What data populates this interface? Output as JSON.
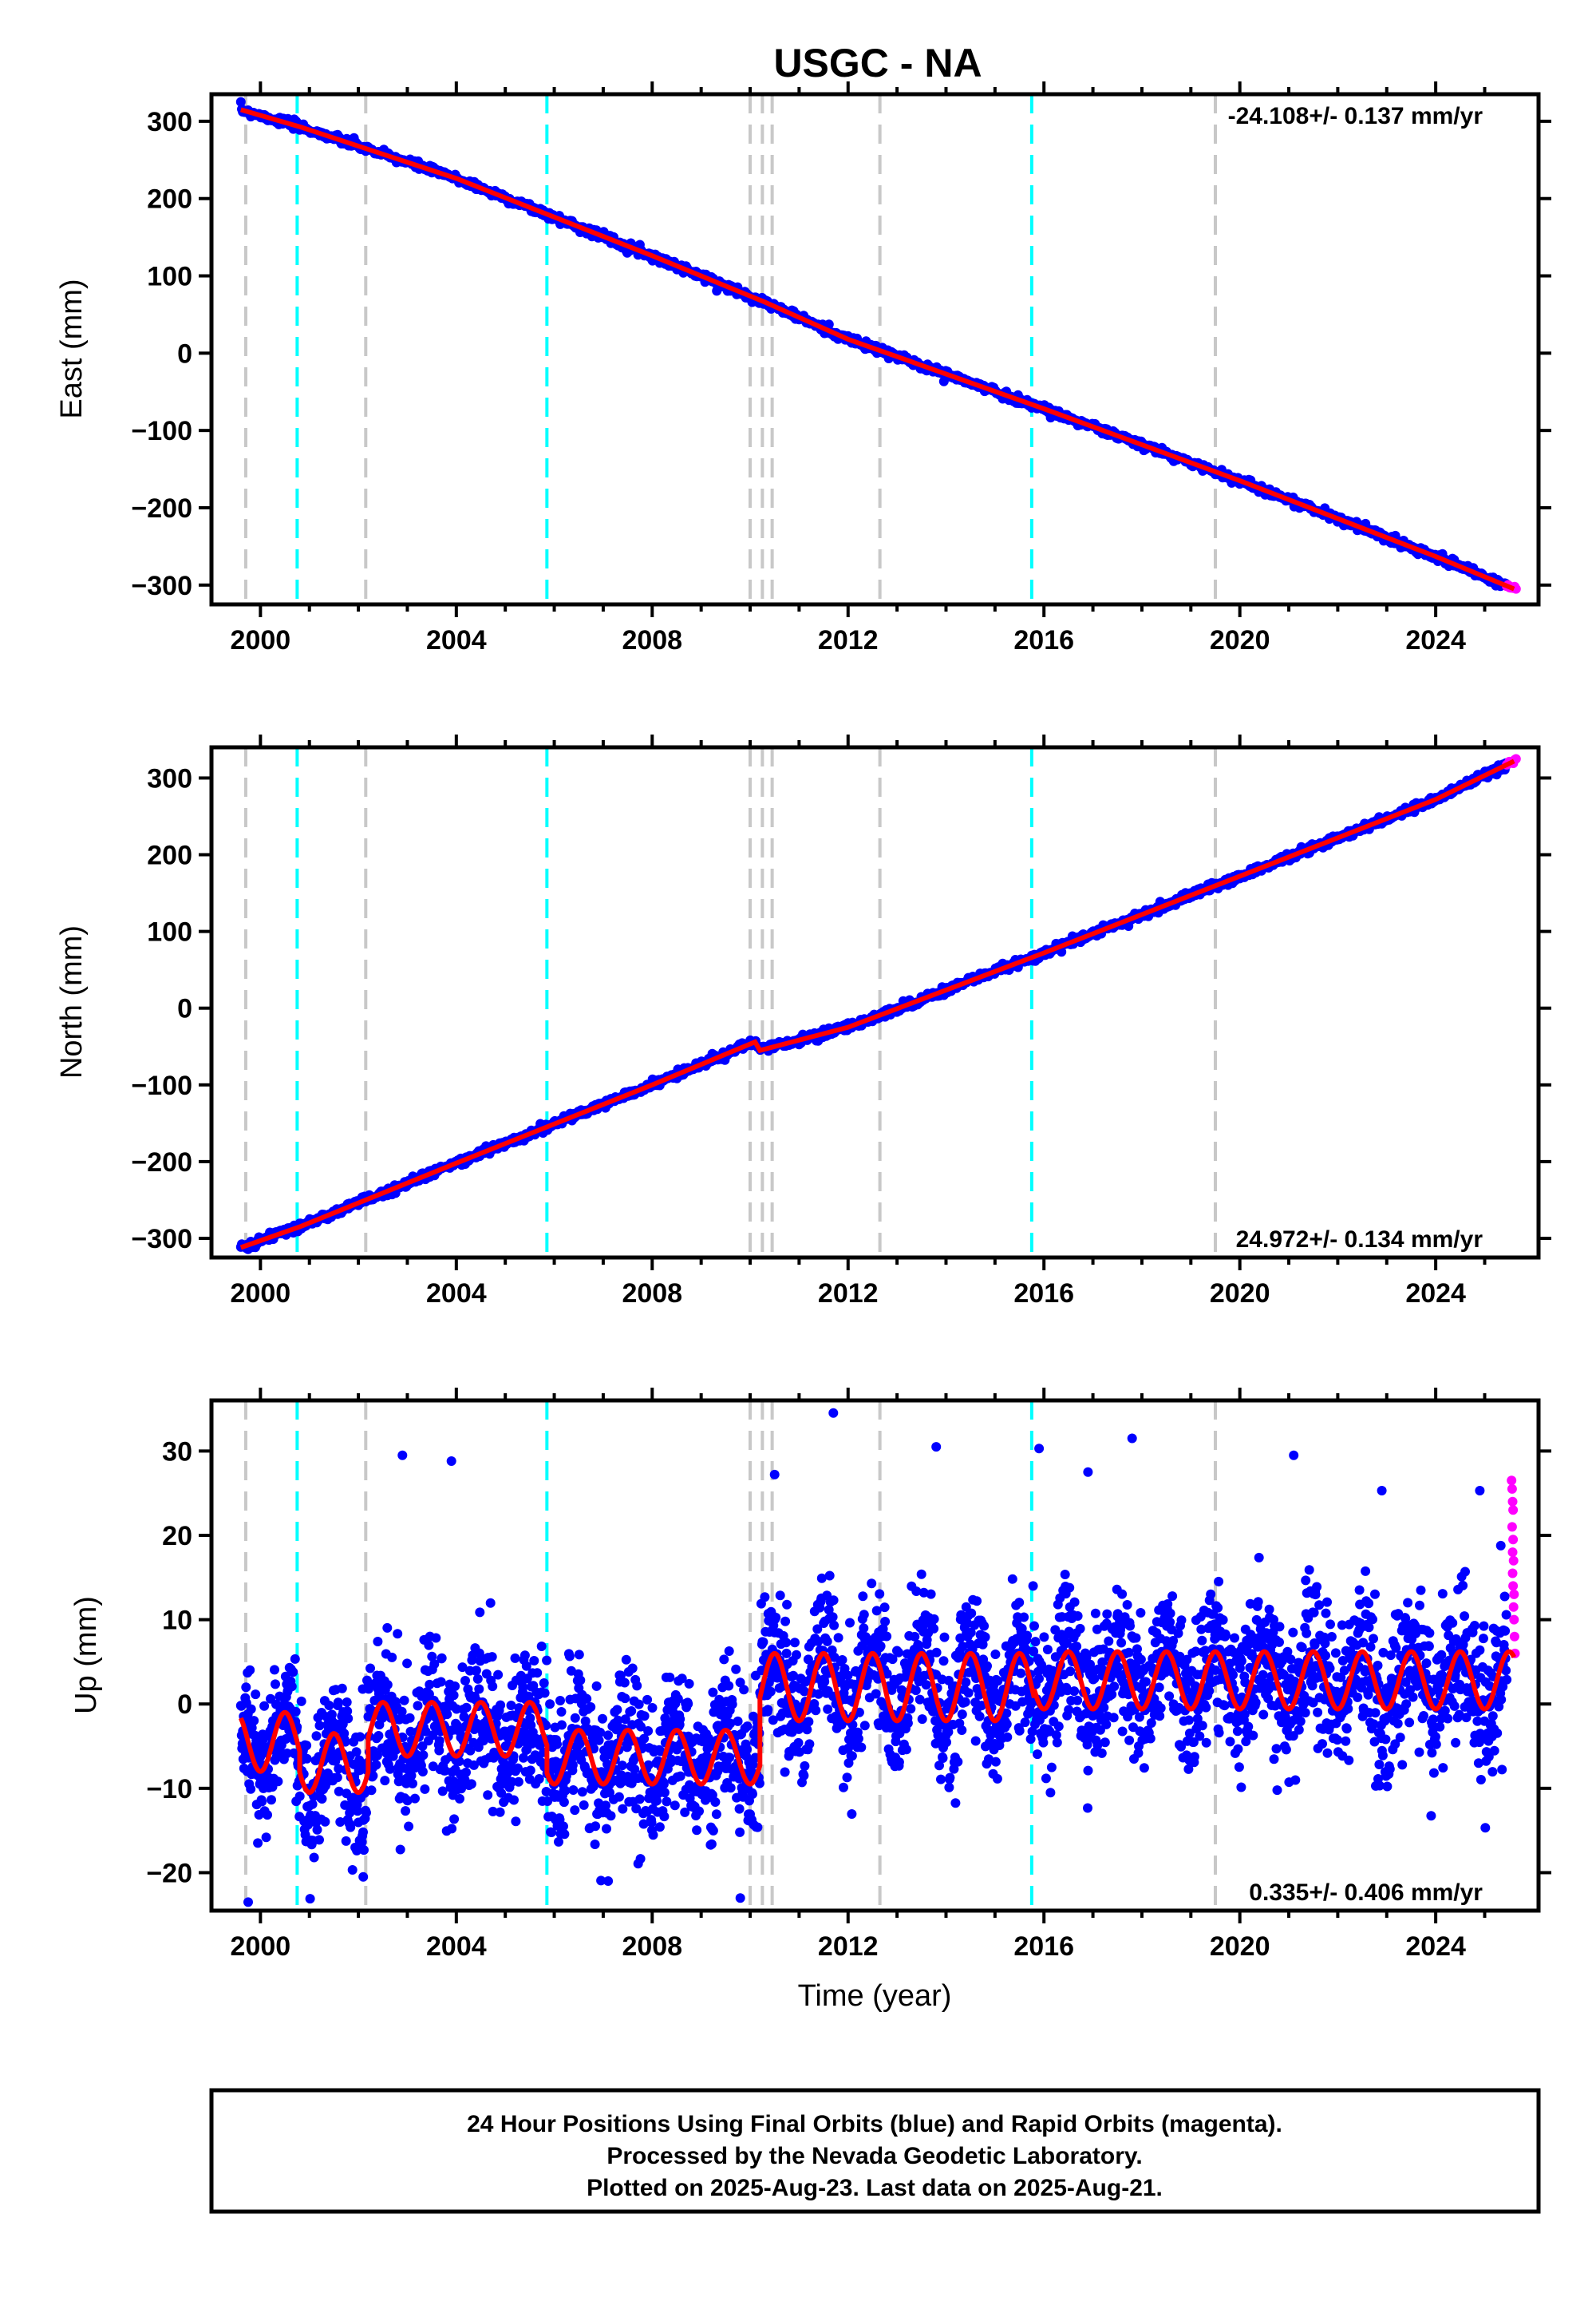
{
  "title": "USGC - NA",
  "xlabel": "Time (year)",
  "x_tick_labels": [
    "2000",
    "2004",
    "2008",
    "2012",
    "2016",
    "2020",
    "2024"
  ],
  "colors": {
    "final_orbits": "#0000ff",
    "rapid_orbits": "#ff00ff",
    "model_fit": "#ff0000",
    "equipment_change": "#c8c8c8",
    "earthquake": "#00ffff"
  },
  "chart_data": [
    {
      "type": "scatter",
      "component": "east",
      "ylabel": "East (mm)",
      "rate_label": "-24.108+/- 0.137 mm/yr",
      "xlim": [
        1999.0,
        2026.1
      ],
      "ylim": [
        -325,
        335
      ],
      "y_ticks": [
        300,
        200,
        100,
        0,
        -100,
        -200,
        -300
      ],
      "y_tick_labels": [
        "300",
        "200",
        "100",
        "0",
        "−100",
        "−200",
        "−300"
      ],
      "rate_mm_per_yr": -24.108,
      "fit_points": [
        [
          1999.6,
          315
        ],
        [
          2000.8,
          293
        ],
        [
          2004,
          226
        ],
        [
          2008,
          126
        ],
        [
          2010.3,
          66
        ],
        [
          2012,
          18
        ],
        [
          2016,
          -72
        ],
        [
          2020,
          -165
        ],
        [
          2024,
          -263
        ],
        [
          2025.6,
          -305
        ]
      ],
      "final_orbit_range": [
        1999.6,
        2025.45
      ],
      "rapid_orbit_range": [
        2025.45,
        2025.64
      ]
    },
    {
      "type": "scatter",
      "component": "north",
      "ylabel": "North (mm)",
      "rate_label": "24.972+/- 0.134 mm/yr",
      "xlim": [
        1999.0,
        2026.1
      ],
      "ylim": [
        -325,
        340
      ],
      "y_ticks": [
        300,
        200,
        100,
        0,
        -100,
        -200,
        -300
      ],
      "y_tick_labels": [
        "300",
        "200",
        "100",
        "0",
        "−100",
        "−200",
        "−300"
      ],
      "rate_mm_per_yr": 24.972,
      "fit_points": [
        [
          1999.6,
          -312
        ],
        [
          2000.8,
          -285
        ],
        [
          2004,
          -202
        ],
        [
          2008,
          -100
        ],
        [
          2010.1,
          -44
        ],
        [
          2010.2,
          -55
        ],
        [
          2012,
          -25
        ],
        [
          2016,
          72
        ],
        [
          2020,
          172
        ],
        [
          2024,
          272
        ],
        [
          2025.6,
          322
        ]
      ],
      "final_orbit_range": [
        1999.6,
        2025.45
      ],
      "rapid_orbit_range": [
        2025.45,
        2025.64
      ]
    },
    {
      "type": "scatter",
      "component": "up",
      "ylabel": "Up (mm)",
      "rate_label": "0.335+/- 0.406 mm/yr",
      "xlim": [
        1999.0,
        2026.1
      ],
      "ylim": [
        -24.5,
        36
      ],
      "y_ticks": [
        30,
        20,
        10,
        0,
        -10,
        -20
      ],
      "y_tick_labels": [
        "30",
        "20",
        "10",
        "0",
        "−10",
        "−20"
      ],
      "rate_mm_per_yr": 0.335,
      "segments": [
        {
          "from": 1999.6,
          "to": 2000.8,
          "mean": -4.5,
          "amp": 3.5
        },
        {
          "from": 2000.8,
          "to": 2002.2,
          "mean": -7,
          "amp": 3.5
        },
        {
          "from": 2002.2,
          "to": 2005.85,
          "mean": -3,
          "amp": 3.2
        },
        {
          "from": 2005.85,
          "to": 2010.2,
          "mean": -6.3,
          "amp": 3.2
        },
        {
          "from": 2010.2,
          "to": 2015.8,
          "mean": 2,
          "amp": 4
        },
        {
          "from": 2015.8,
          "to": 2025.6,
          "mean": 2.8,
          "amp": 3.4
        }
      ],
      "noise_sd": 4.2,
      "outliers": [
        [
          2011.7,
          34.5
        ],
        [
          2013.8,
          30.5
        ],
        [
          2015.9,
          30.3
        ],
        [
          2017.8,
          31.5
        ],
        [
          2021.1,
          29.5
        ],
        [
          2003.9,
          28.8
        ],
        [
          2002.9,
          29.5
        ],
        [
          2010.5,
          27.2
        ],
        [
          2016.9,
          27.5
        ],
        [
          2024.9,
          25.3
        ],
        [
          2022.9,
          25.3
        ],
        [
          1999.75,
          -23.5
        ],
        [
          2009.8,
          -23
        ],
        [
          2007.1,
          -21
        ],
        [
          2002.1,
          -20.5
        ]
      ],
      "rapid_orbit_points": [
        [
          2025.55,
          26.5
        ],
        [
          2025.56,
          25.5
        ],
        [
          2025.57,
          24
        ],
        [
          2025.58,
          23
        ],
        [
          2025.56,
          21
        ],
        [
          2025.58,
          19.5
        ],
        [
          2025.57,
          18
        ],
        [
          2025.59,
          17
        ],
        [
          2025.57,
          15.5
        ],
        [
          2025.58,
          14
        ],
        [
          2025.6,
          13
        ],
        [
          2025.59,
          11.5
        ],
        [
          2025.6,
          10
        ],
        [
          2025.61,
          8
        ],
        [
          2025.62,
          6
        ]
      ]
    }
  ],
  "vertical_markers": {
    "gray_dashed": [
      1999.7,
      2002.15,
      2010.0,
      2010.25,
      2010.45,
      2012.65,
      2019.5
    ],
    "cyan_dashed": [
      2000.75,
      2005.85,
      2015.75
    ]
  },
  "footer": {
    "line1": "24 Hour Positions Using Final Orbits (blue) and Rapid Orbits (magenta).",
    "line2": "Processed by the Nevada Geodetic Laboratory.",
    "line3": "Plotted on 2025-Aug-23. Last data on 2025-Aug-21."
  }
}
